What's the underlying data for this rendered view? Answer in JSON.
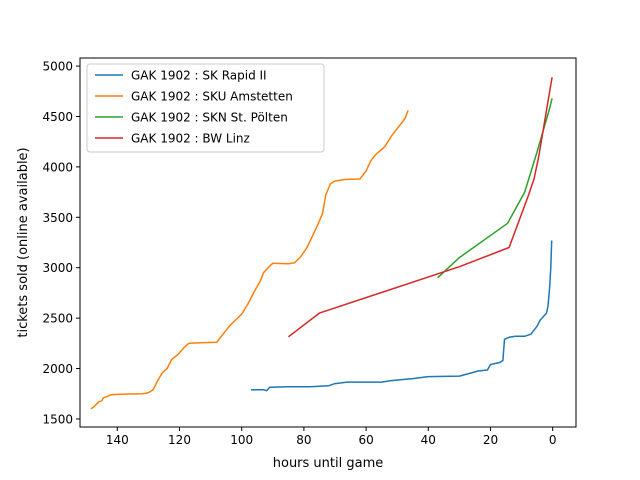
{
  "chart_data": {
    "type": "line",
    "title": "",
    "xlabel": "hours until game",
    "ylabel": "tickets sold (online available)",
    "xlim": [
      152,
      -7.5
    ],
    "ylim": [
      1420,
      5080
    ],
    "x_inverted": true,
    "xticks": [
      140,
      120,
      100,
      80,
      60,
      40,
      20,
      0
    ],
    "yticks": [
      1500,
      2000,
      2500,
      3000,
      3500,
      4000,
      4500,
      5000
    ],
    "grid": false,
    "legend_position": "top-left",
    "series": [
      {
        "name": "GAK 1902 : SK Rapid II",
        "color": "#1f77b4",
        "points": [
          [
            97,
            1790
          ],
          [
            93,
            1790
          ],
          [
            92,
            1780
          ],
          [
            91,
            1815
          ],
          [
            85,
            1820
          ],
          [
            78,
            1820
          ],
          [
            72,
            1830
          ],
          [
            70,
            1850
          ],
          [
            66,
            1865
          ],
          [
            55,
            1865
          ],
          [
            52,
            1880
          ],
          [
            45,
            1900
          ],
          [
            40,
            1920
          ],
          [
            30,
            1925
          ],
          [
            27,
            1950
          ],
          [
            24,
            1975
          ],
          [
            21,
            1985
          ],
          [
            20,
            2040
          ],
          [
            17,
            2060
          ],
          [
            16,
            2080
          ],
          [
            15.5,
            2290
          ],
          [
            14,
            2310
          ],
          [
            12,
            2320
          ],
          [
            9,
            2320
          ],
          [
            7,
            2340
          ],
          [
            6,
            2380
          ],
          [
            5,
            2420
          ],
          [
            4,
            2480
          ],
          [
            2,
            2550
          ],
          [
            1.5,
            2620
          ],
          [
            1,
            2800
          ],
          [
            0.6,
            3000
          ],
          [
            0.3,
            3270
          ]
        ]
      },
      {
        "name": "GAK 1902 : SKU Amstetten",
        "color": "#ff7f0e",
        "points": [
          [
            148.5,
            1600
          ],
          [
            147.5,
            1620
          ],
          [
            146,
            1670
          ],
          [
            145,
            1680
          ],
          [
            144.5,
            1710
          ],
          [
            143.5,
            1720
          ],
          [
            142,
            1740
          ],
          [
            139,
            1745
          ],
          [
            132,
            1750
          ],
          [
            130,
            1760
          ],
          [
            128.5,
            1790
          ],
          [
            127,
            1880
          ],
          [
            125.5,
            1960
          ],
          [
            124,
            2000
          ],
          [
            122.5,
            2090
          ],
          [
            120.5,
            2140
          ],
          [
            118.5,
            2210
          ],
          [
            117,
            2250
          ],
          [
            113,
            2255
          ],
          [
            108,
            2260
          ],
          [
            106,
            2340
          ],
          [
            104,
            2420
          ],
          [
            102,
            2480
          ],
          [
            100,
            2540
          ],
          [
            98,
            2640
          ],
          [
            96,
            2760
          ],
          [
            94,
            2870
          ],
          [
            93,
            2950
          ],
          [
            91.5,
            3000
          ],
          [
            90,
            3045
          ],
          [
            85,
            3040
          ],
          [
            83,
            3050
          ],
          [
            81,
            3110
          ],
          [
            79,
            3200
          ],
          [
            77,
            3330
          ],
          [
            75.5,
            3430
          ],
          [
            74,
            3540
          ],
          [
            73,
            3720
          ],
          [
            71.5,
            3830
          ],
          [
            70,
            3860
          ],
          [
            67,
            3875
          ],
          [
            62,
            3880
          ],
          [
            60,
            3960
          ],
          [
            58.5,
            4060
          ],
          [
            57,
            4120
          ],
          [
            54,
            4200
          ],
          [
            52,
            4300
          ],
          [
            50,
            4380
          ],
          [
            48.5,
            4440
          ],
          [
            47.5,
            4480
          ],
          [
            46.5,
            4560
          ]
        ]
      },
      {
        "name": "GAK 1902 : SKN St. Pölten",
        "color": "#2ca02c",
        "points": [
          [
            37,
            2900
          ],
          [
            30,
            3100
          ],
          [
            14.5,
            3440
          ],
          [
            9,
            3750
          ],
          [
            5,
            4150
          ],
          [
            1,
            4580
          ],
          [
            0.2,
            4680
          ]
        ]
      },
      {
        "name": "GAK 1902 : BW Linz",
        "color": "#d62728",
        "points": [
          [
            85,
            2315
          ],
          [
            75,
            2550
          ],
          [
            30,
            3010
          ],
          [
            14,
            3200
          ],
          [
            8,
            3700
          ],
          [
            6,
            3880
          ],
          [
            4.5,
            4100
          ],
          [
            1.5,
            4650
          ],
          [
            0.2,
            4890
          ]
        ]
      }
    ]
  }
}
